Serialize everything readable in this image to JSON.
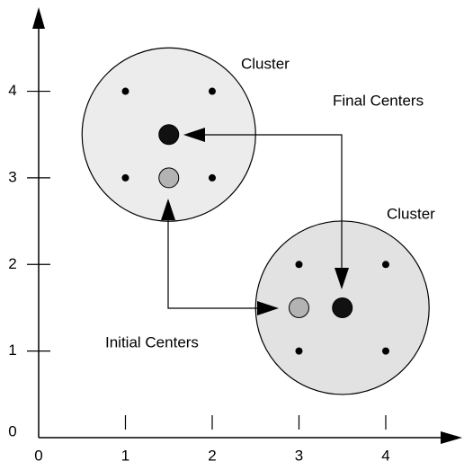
{
  "axes": {
    "xlim": [
      0,
      4.85
    ],
    "ylim": [
      0,
      4.95
    ],
    "xticks": [
      0,
      1,
      2,
      3,
      4
    ],
    "yticks": [
      0,
      1,
      2,
      3,
      4
    ]
  },
  "clusters": [
    {
      "label": "Cluster",
      "center": [
        1.5,
        3.5
      ],
      "radius": 1,
      "initial": [
        1.5,
        3
      ],
      "points": [
        [
          1,
          4
        ],
        [
          2,
          4
        ],
        [
          1,
          3
        ],
        [
          2,
          3
        ]
      ],
      "color": "#ececec"
    },
    {
      "label": "Cluster",
      "center": [
        3.5,
        1.5
      ],
      "radius": 1,
      "initial": [
        3,
        1.5
      ],
      "points": [
        [
          3,
          2
        ],
        [
          4,
          2
        ],
        [
          3,
          1
        ],
        [
          4,
          1
        ]
      ],
      "color": "#e2e2e2"
    }
  ],
  "labels": {
    "final": "Final Centers",
    "initial": "Initial Centers"
  }
}
